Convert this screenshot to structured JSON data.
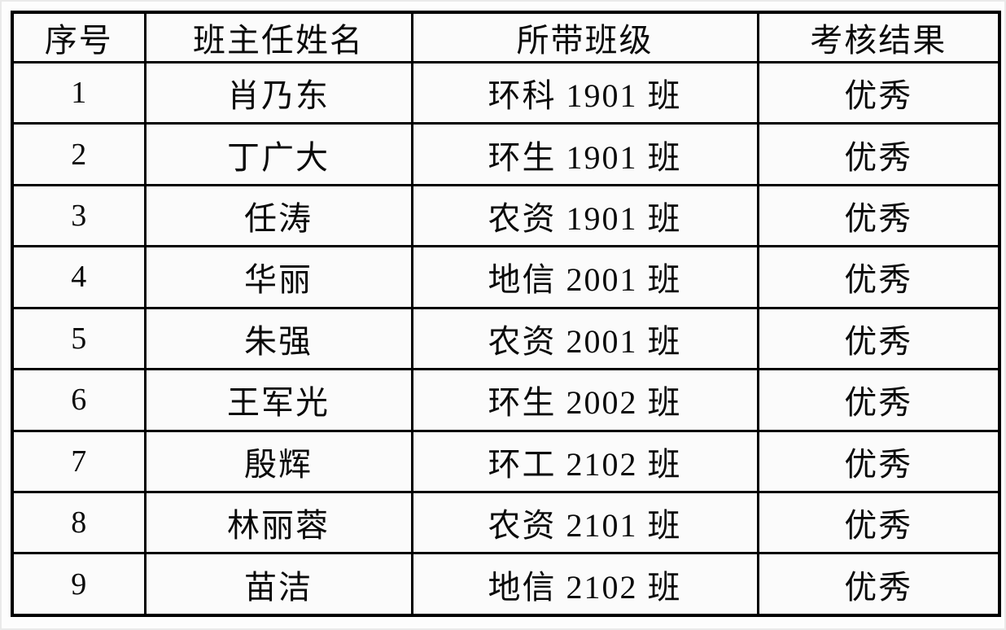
{
  "table": {
    "headers": [
      "序号",
      "班主任姓名",
      "所带班级",
      "考核结果"
    ],
    "rows": [
      {
        "seq": "1",
        "name": "肖乃东",
        "class": "环科 1901 班",
        "result": "优秀"
      },
      {
        "seq": "2",
        "name": "丁广大",
        "class": "环生 1901 班",
        "result": "优秀"
      },
      {
        "seq": "3",
        "name": "任涛",
        "class": "农资 1901 班",
        "result": "优秀"
      },
      {
        "seq": "4",
        "name": "华丽",
        "class": "地信 2001 班",
        "result": "优秀"
      },
      {
        "seq": "5",
        "name": "朱强",
        "class": "农资 2001 班",
        "result": "优秀"
      },
      {
        "seq": "6",
        "name": "王军光",
        "class": "环生 2002 班",
        "result": "优秀"
      },
      {
        "seq": "7",
        "name": "殷辉",
        "class": "环工 2102 班",
        "result": "优秀"
      },
      {
        "seq": "8",
        "name": "林丽蓉",
        "class": "农资 2101 班",
        "result": "优秀"
      },
      {
        "seq": "9",
        "name": "苗洁",
        "class": "地信 2102 班",
        "result": "优秀"
      }
    ],
    "colors": {
      "border": "#000000",
      "background": "#fbfbfb",
      "text": "#0a0a0a"
    }
  }
}
